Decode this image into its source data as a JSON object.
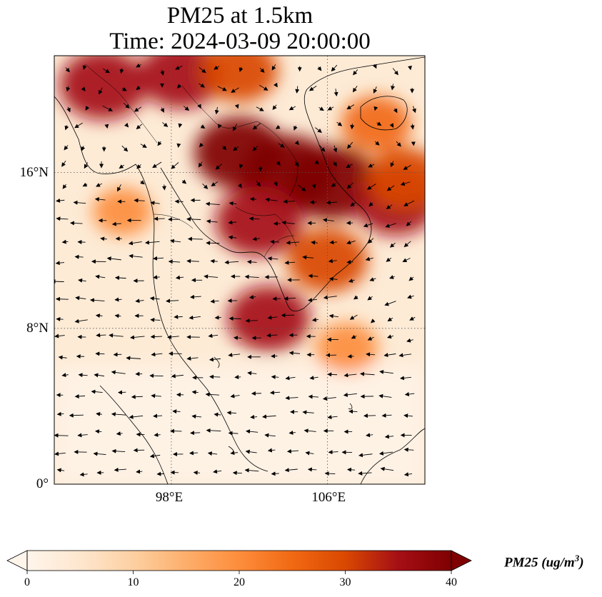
{
  "title": {
    "line1": "PM25 at 1.5km",
    "line2": "Time: 2024-03-09 20:00:00"
  },
  "map": {
    "lon_range": [
      92,
      111
    ],
    "lat_range": [
      0,
      22
    ],
    "lat_ticks": [
      {
        "value": 16,
        "label": "16°N"
      },
      {
        "value": 8,
        "label": "8°N"
      },
      {
        "value": 0,
        "label": "0°"
      }
    ],
    "lon_ticks": [
      {
        "value": 98,
        "label": "98°E"
      },
      {
        "value": 106,
        "label": "106°E"
      }
    ],
    "variable": "PM25",
    "vectors": "wind at 1.5km",
    "hotspots": [
      {
        "lon": 94.5,
        "lat": 20.5,
        "value": 36
      },
      {
        "lon": 98.5,
        "lat": 21.0,
        "value": 34
      },
      {
        "lon": 101.5,
        "lat": 21.2,
        "value": 30
      },
      {
        "lon": 101.5,
        "lat": 17.0,
        "value": 38
      },
      {
        "lon": 104.0,
        "lat": 16.0,
        "value": 40
      },
      {
        "lon": 106.2,
        "lat": 15.5,
        "value": 40
      },
      {
        "lon": 102.5,
        "lat": 13.5,
        "value": 36
      },
      {
        "lon": 106.0,
        "lat": 11.5,
        "value": 32
      },
      {
        "lon": 103.0,
        "lat": 8.5,
        "value": 33
      },
      {
        "lon": 109.5,
        "lat": 14.5,
        "value": 34
      },
      {
        "lon": 110.0,
        "lat": 15.7,
        "value": 30
      },
      {
        "lon": 108.5,
        "lat": 18.5,
        "value": 26
      },
      {
        "lon": 107.0,
        "lat": 7.0,
        "value": 22
      },
      {
        "lon": 95.5,
        "lat": 14.0,
        "value": 20
      }
    ]
  },
  "colorbar": {
    "label": "PM25 (ug/m",
    "label_sup": "3",
    "label_end": ")",
    "min": 0,
    "max": 40,
    "ticks": [
      {
        "value": 0,
        "label": "0"
      },
      {
        "value": 10,
        "label": "10"
      },
      {
        "value": 20,
        "label": "20"
      },
      {
        "value": 30,
        "label": "30"
      },
      {
        "value": 40,
        "label": "40"
      }
    ],
    "colors": [
      "#fff5eb",
      "#fee6ce",
      "#fdd0a2",
      "#fdae6b",
      "#fd8d3c",
      "#f16913",
      "#d94801",
      "#a50f15",
      "#7f0000"
    ]
  }
}
